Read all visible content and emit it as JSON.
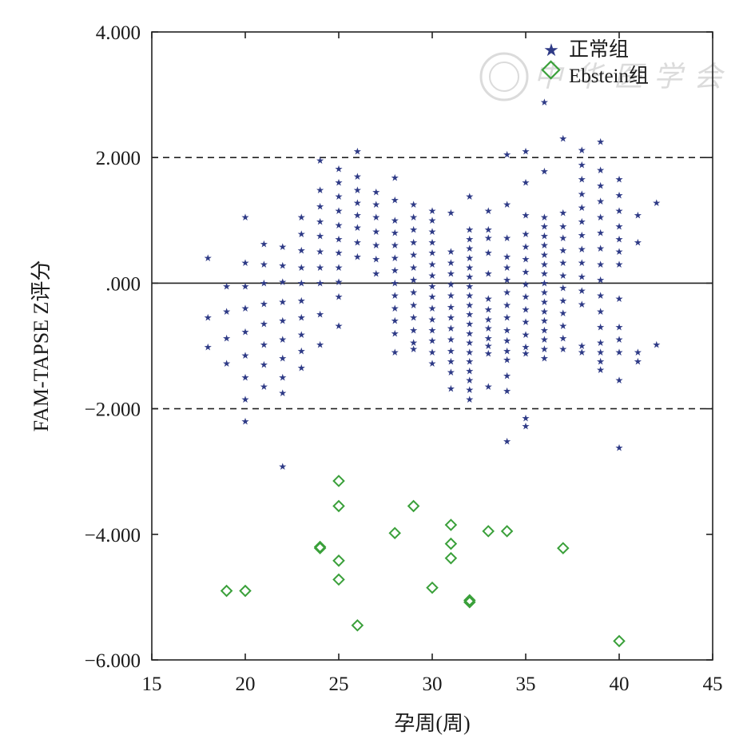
{
  "chart_data": {
    "type": "scatter",
    "title": "",
    "xlabel": "孕周(周)",
    "ylabel": "FAM-TAPSE Z评分",
    "xlim": [
      15,
      45
    ],
    "ylim": [
      -6,
      4
    ],
    "x_ticks": [
      15,
      20,
      25,
      30,
      35,
      40,
      45
    ],
    "y_ticks": [
      4,
      2,
      0,
      -2,
      -4,
      -6
    ],
    "y_tick_labels": [
      "4.000",
      "2.000",
      ".000",
      "-2.000",
      "-4.000",
      "-6.000"
    ],
    "reference_lines": [
      {
        "y": 2,
        "style": "dashed"
      },
      {
        "y": 0,
        "style": "solid"
      },
      {
        "y": -2,
        "style": "dashed"
      }
    ],
    "grid": false,
    "legend_position": "top-right",
    "watermark": "中华医学会",
    "colors": {
      "normal": "#2e3a86",
      "ebstein": "#3aa03a",
      "axis": "#222222"
    },
    "series": [
      {
        "name": "正常组",
        "marker": "star",
        "points": [
          [
            18,
            0.4
          ],
          [
            18,
            -0.55
          ],
          [
            18,
            -1.02
          ],
          [
            19,
            -0.05
          ],
          [
            19,
            -0.45
          ],
          [
            19,
            -0.88
          ],
          [
            19,
            -1.28
          ],
          [
            20,
            1.05
          ],
          [
            20,
            0.32
          ],
          [
            20,
            -0.05
          ],
          [
            20,
            -0.4
          ],
          [
            20,
            -0.78
          ],
          [
            20,
            -1.15
          ],
          [
            20,
            -1.5
          ],
          [
            20,
            -1.85
          ],
          [
            20,
            -2.2
          ],
          [
            21,
            0.62
          ],
          [
            21,
            0.3
          ],
          [
            21,
            0.0
          ],
          [
            21,
            -0.33
          ],
          [
            21,
            -0.65
          ],
          [
            21,
            -0.98
          ],
          [
            21,
            -1.3
          ],
          [
            21,
            -1.65
          ],
          [
            22,
            0.58
          ],
          [
            22,
            0.28
          ],
          [
            22,
            0.02
          ],
          [
            22,
            -0.3
          ],
          [
            22,
            -0.6
          ],
          [
            22,
            -0.9
          ],
          [
            22,
            -1.2
          ],
          [
            22,
            -1.5
          ],
          [
            22,
            -1.75
          ],
          [
            22,
            -2.92
          ],
          [
            23,
            1.05
          ],
          [
            23,
            0.78
          ],
          [
            23,
            0.52
          ],
          [
            23,
            0.25
          ],
          [
            23,
            0.0
          ],
          [
            23,
            -0.28
          ],
          [
            23,
            -0.55
          ],
          [
            23,
            -0.82
          ],
          [
            23,
            -1.08
          ],
          [
            23,
            -1.35
          ],
          [
            24,
            1.95
          ],
          [
            24,
            1.48
          ],
          [
            24,
            1.22
          ],
          [
            24,
            0.98
          ],
          [
            24,
            0.75
          ],
          [
            24,
            0.5
          ],
          [
            24,
            0.25
          ],
          [
            24,
            0.0
          ],
          [
            24,
            -0.5
          ],
          [
            24,
            -0.98
          ],
          [
            25,
            1.82
          ],
          [
            25,
            1.6
          ],
          [
            25,
            1.38
          ],
          [
            25,
            1.15
          ],
          [
            25,
            0.92
          ],
          [
            25,
            0.7
          ],
          [
            25,
            0.48
          ],
          [
            25,
            0.25
          ],
          [
            25,
            0.02
          ],
          [
            25,
            -0.22
          ],
          [
            25,
            -0.68
          ],
          [
            26,
            2.1
          ],
          [
            26,
            1.7
          ],
          [
            26,
            1.48
          ],
          [
            26,
            1.28
          ],
          [
            26,
            1.08
          ],
          [
            26,
            0.88
          ],
          [
            26,
            0.65
          ],
          [
            26,
            0.42
          ],
          [
            27,
            1.45
          ],
          [
            27,
            1.25
          ],
          [
            27,
            1.05
          ],
          [
            27,
            0.82
          ],
          [
            27,
            0.6
          ],
          [
            27,
            0.38
          ],
          [
            27,
            0.15
          ],
          [
            28,
            1.68
          ],
          [
            28,
            1.32
          ],
          [
            28,
            1.0
          ],
          [
            28,
            0.8
          ],
          [
            28,
            0.6
          ],
          [
            28,
            0.4
          ],
          [
            28,
            0.2
          ],
          [
            28,
            0.0
          ],
          [
            28,
            -0.2
          ],
          [
            28,
            -0.4
          ],
          [
            28,
            -0.6
          ],
          [
            28,
            -0.8
          ],
          [
            28,
            -1.1
          ],
          [
            29,
            1.25
          ],
          [
            29,
            1.05
          ],
          [
            29,
            0.85
          ],
          [
            29,
            0.65
          ],
          [
            29,
            0.45
          ],
          [
            29,
            0.25
          ],
          [
            29,
            0.05
          ],
          [
            29,
            -0.15
          ],
          [
            29,
            -0.35
          ],
          [
            29,
            -0.55
          ],
          [
            29,
            -0.75
          ],
          [
            29,
            -0.95
          ],
          [
            29,
            -1.05
          ],
          [
            30,
            1.15
          ],
          [
            30,
            1.0
          ],
          [
            30,
            0.82
          ],
          [
            30,
            0.65
          ],
          [
            30,
            0.48
          ],
          [
            30,
            0.3
          ],
          [
            30,
            0.12
          ],
          [
            30,
            -0.05
          ],
          [
            30,
            -0.22
          ],
          [
            30,
            -0.4
          ],
          [
            30,
            -0.58
          ],
          [
            30,
            -0.75
          ],
          [
            30,
            -0.92
          ],
          [
            30,
            -1.1
          ],
          [
            30,
            -1.28
          ],
          [
            31,
            1.12
          ],
          [
            31,
            0.5
          ],
          [
            31,
            0.32
          ],
          [
            31,
            0.15
          ],
          [
            31,
            -0.02
          ],
          [
            31,
            -0.2
          ],
          [
            31,
            -0.38
          ],
          [
            31,
            -0.55
          ],
          [
            31,
            -0.72
          ],
          [
            31,
            -0.9
          ],
          [
            31,
            -1.08
          ],
          [
            31,
            -1.25
          ],
          [
            31,
            -1.42
          ],
          [
            31,
            -1.68
          ],
          [
            32,
            1.38
          ],
          [
            32,
            0.85
          ],
          [
            32,
            0.7
          ],
          [
            32,
            0.55
          ],
          [
            32,
            0.4
          ],
          [
            32,
            0.25
          ],
          [
            32,
            0.1
          ],
          [
            32,
            -0.05
          ],
          [
            32,
            -0.2
          ],
          [
            32,
            -0.35
          ],
          [
            32,
            -0.5
          ],
          [
            32,
            -0.65
          ],
          [
            32,
            -0.8
          ],
          [
            32,
            -0.95
          ],
          [
            32,
            -1.1
          ],
          [
            32,
            -1.25
          ],
          [
            32,
            -1.4
          ],
          [
            32,
            -1.55
          ],
          [
            32,
            -1.7
          ],
          [
            32,
            -1.85
          ],
          [
            33,
            1.15
          ],
          [
            33,
            0.85
          ],
          [
            33,
            0.72
          ],
          [
            33,
            0.48
          ],
          [
            33,
            0.15
          ],
          [
            33,
            -0.25
          ],
          [
            33,
            -0.42
          ],
          [
            33,
            -0.58
          ],
          [
            33,
            -0.72
          ],
          [
            33,
            -0.88
          ],
          [
            33,
            -1.0
          ],
          [
            33,
            -1.12
          ],
          [
            33,
            -1.65
          ],
          [
            34,
            2.05
          ],
          [
            34,
            1.25
          ],
          [
            34,
            0.72
          ],
          [
            34,
            0.42
          ],
          [
            34,
            0.25
          ],
          [
            34,
            0.05
          ],
          [
            34,
            -0.15
          ],
          [
            34,
            -0.35
          ],
          [
            34,
            -0.55
          ],
          [
            34,
            -0.75
          ],
          [
            34,
            -0.92
          ],
          [
            34,
            -1.08
          ],
          [
            34,
            -1.22
          ],
          [
            34,
            -1.48
          ],
          [
            34,
            -1.72
          ],
          [
            34,
            -2.52
          ],
          [
            35,
            2.1
          ],
          [
            35,
            1.6
          ],
          [
            35,
            1.08
          ],
          [
            35,
            0.78
          ],
          [
            35,
            0.58
          ],
          [
            35,
            0.38
          ],
          [
            35,
            0.18
          ],
          [
            35,
            -0.02
          ],
          [
            35,
            -0.22
          ],
          [
            35,
            -0.42
          ],
          [
            35,
            -0.62
          ],
          [
            35,
            -0.82
          ],
          [
            35,
            -1.02
          ],
          [
            35,
            -1.12
          ],
          [
            35,
            -2.15
          ],
          [
            35,
            -2.28
          ],
          [
            36,
            2.88
          ],
          [
            36,
            1.78
          ],
          [
            36,
            1.05
          ],
          [
            36,
            0.9
          ],
          [
            36,
            0.75
          ],
          [
            36,
            0.6
          ],
          [
            36,
            0.45
          ],
          [
            36,
            0.3
          ],
          [
            36,
            0.15
          ],
          [
            36,
            0.0
          ],
          [
            36,
            -0.15
          ],
          [
            36,
            -0.3
          ],
          [
            36,
            -0.45
          ],
          [
            36,
            -0.6
          ],
          [
            36,
            -0.75
          ],
          [
            36,
            -0.9
          ],
          [
            36,
            -1.05
          ],
          [
            36,
            -1.2
          ],
          [
            37,
            2.3
          ],
          [
            37,
            1.12
          ],
          [
            37,
            0.9
          ],
          [
            37,
            0.72
          ],
          [
            37,
            0.52
          ],
          [
            37,
            0.32
          ],
          [
            37,
            0.12
          ],
          [
            37,
            -0.08
          ],
          [
            37,
            -0.28
          ],
          [
            37,
            -0.48
          ],
          [
            37,
            -0.68
          ],
          [
            37,
            -0.88
          ],
          [
            37,
            -1.05
          ],
          [
            38,
            2.12
          ],
          [
            38,
            1.88
          ],
          [
            38,
            1.65
          ],
          [
            38,
            1.42
          ],
          [
            38,
            1.2
          ],
          [
            38,
            0.98
          ],
          [
            38,
            0.76
          ],
          [
            38,
            0.54
          ],
          [
            38,
            0.32
          ],
          [
            38,
            0.1
          ],
          [
            38,
            -0.12
          ],
          [
            38,
            -0.34
          ],
          [
            38,
            -1.0
          ],
          [
            38,
            -1.1
          ],
          [
            39,
            2.25
          ],
          [
            39,
            1.8
          ],
          [
            39,
            1.55
          ],
          [
            39,
            1.3
          ],
          [
            39,
            1.05
          ],
          [
            39,
            0.8
          ],
          [
            39,
            0.55
          ],
          [
            39,
            0.3
          ],
          [
            39,
            0.05
          ],
          [
            39,
            -0.2
          ],
          [
            39,
            -0.45
          ],
          [
            39,
            -0.7
          ],
          [
            39,
            -0.95
          ],
          [
            39,
            -1.1
          ],
          [
            39,
            -1.25
          ],
          [
            39,
            -1.38
          ],
          [
            40,
            1.65
          ],
          [
            40,
            1.4
          ],
          [
            40,
            1.15
          ],
          [
            40,
            0.9
          ],
          [
            40,
            0.7
          ],
          [
            40,
            0.5
          ],
          [
            40,
            0.3
          ],
          [
            40,
            -0.25
          ],
          [
            40,
            -0.7
          ],
          [
            40,
            -0.9
          ],
          [
            40,
            -1.1
          ],
          [
            40,
            -1.55
          ],
          [
            40,
            -2.62
          ],
          [
            41,
            1.08
          ],
          [
            41,
            0.65
          ],
          [
            41,
            -1.1
          ],
          [
            41,
            -1.25
          ],
          [
            42,
            1.28
          ],
          [
            42,
            -0.98
          ]
        ]
      },
      {
        "name": "Ebstein组",
        "marker": "diamond",
        "points": [
          [
            19,
            -4.9
          ],
          [
            20,
            -4.9
          ],
          [
            24,
            -4.2
          ],
          [
            24,
            -4.22
          ],
          [
            25,
            -3.15
          ],
          [
            25,
            -3.55
          ],
          [
            25,
            -4.42
          ],
          [
            25,
            -4.72
          ],
          [
            26,
            -5.45
          ],
          [
            28,
            -3.98
          ],
          [
            29,
            -3.55
          ],
          [
            30,
            -4.85
          ],
          [
            31,
            -3.85
          ],
          [
            31,
            -4.15
          ],
          [
            31,
            -4.38
          ],
          [
            32,
            -5.05
          ],
          [
            32,
            -5.08
          ],
          [
            33,
            -3.95
          ],
          [
            34,
            -3.95
          ],
          [
            37,
            -4.22
          ],
          [
            40,
            -5.7
          ]
        ]
      }
    ]
  }
}
